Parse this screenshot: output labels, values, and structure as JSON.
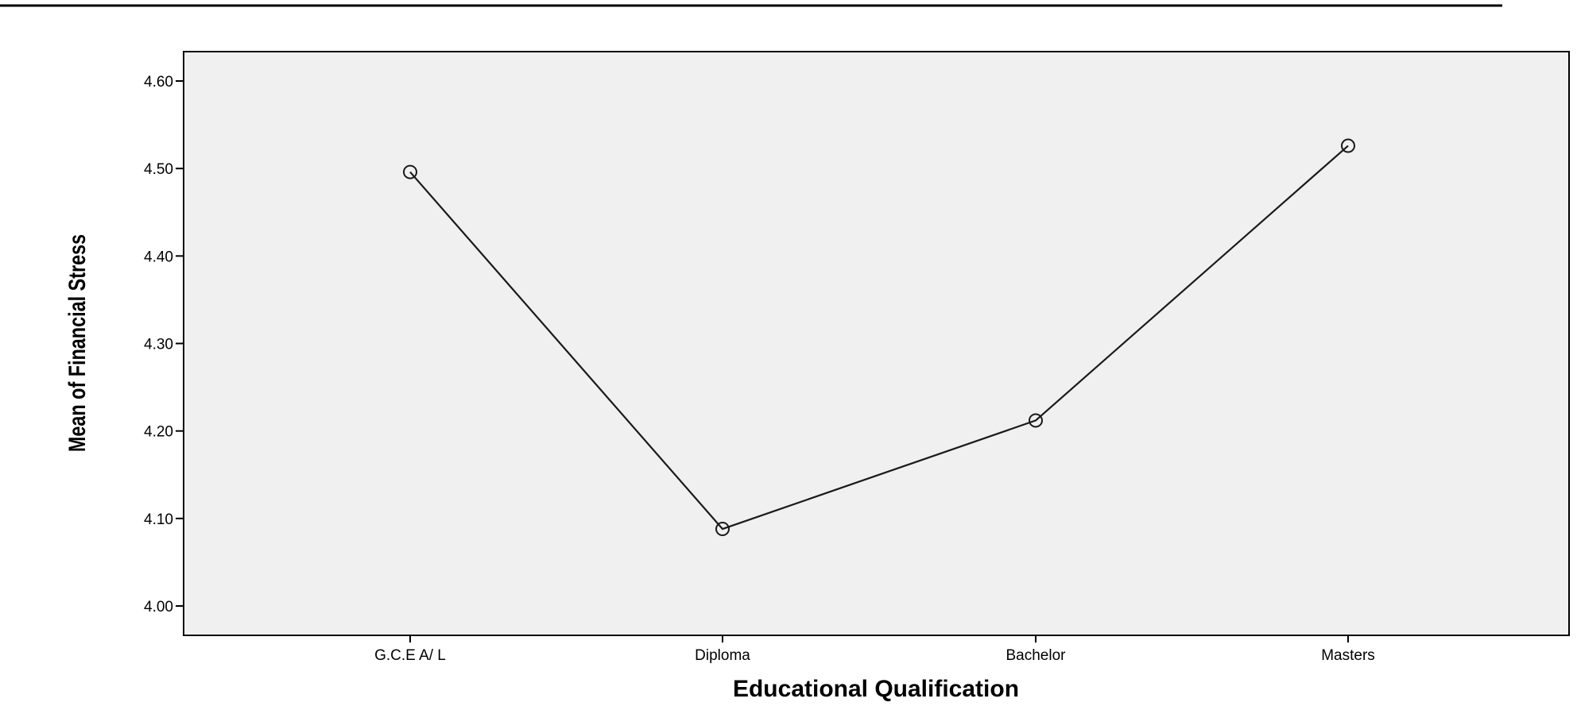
{
  "chart_data": {
    "type": "line",
    "title": "",
    "xlabel": "Educational Qualification",
    "ylabel": "Mean of Financial Stress",
    "categories": [
      "G.C.E A/ L",
      "Diploma",
      "Bachelor",
      "Masters"
    ],
    "series": [
      {
        "values": [
          4.496,
          4.088,
          4.212,
          4.526
        ]
      }
    ],
    "ylim": [
      3.97,
      4.63
    ],
    "yticks": [
      "4.00",
      "4.10",
      "4.20",
      "4.30",
      "4.40",
      "4.50",
      "4.60"
    ],
    "grid": false,
    "legend": "none",
    "colors": {
      "plot_background": "#f0f0f0",
      "line": "#1a1a1a",
      "frame": "#000000",
      "rule": "#000000"
    }
  }
}
